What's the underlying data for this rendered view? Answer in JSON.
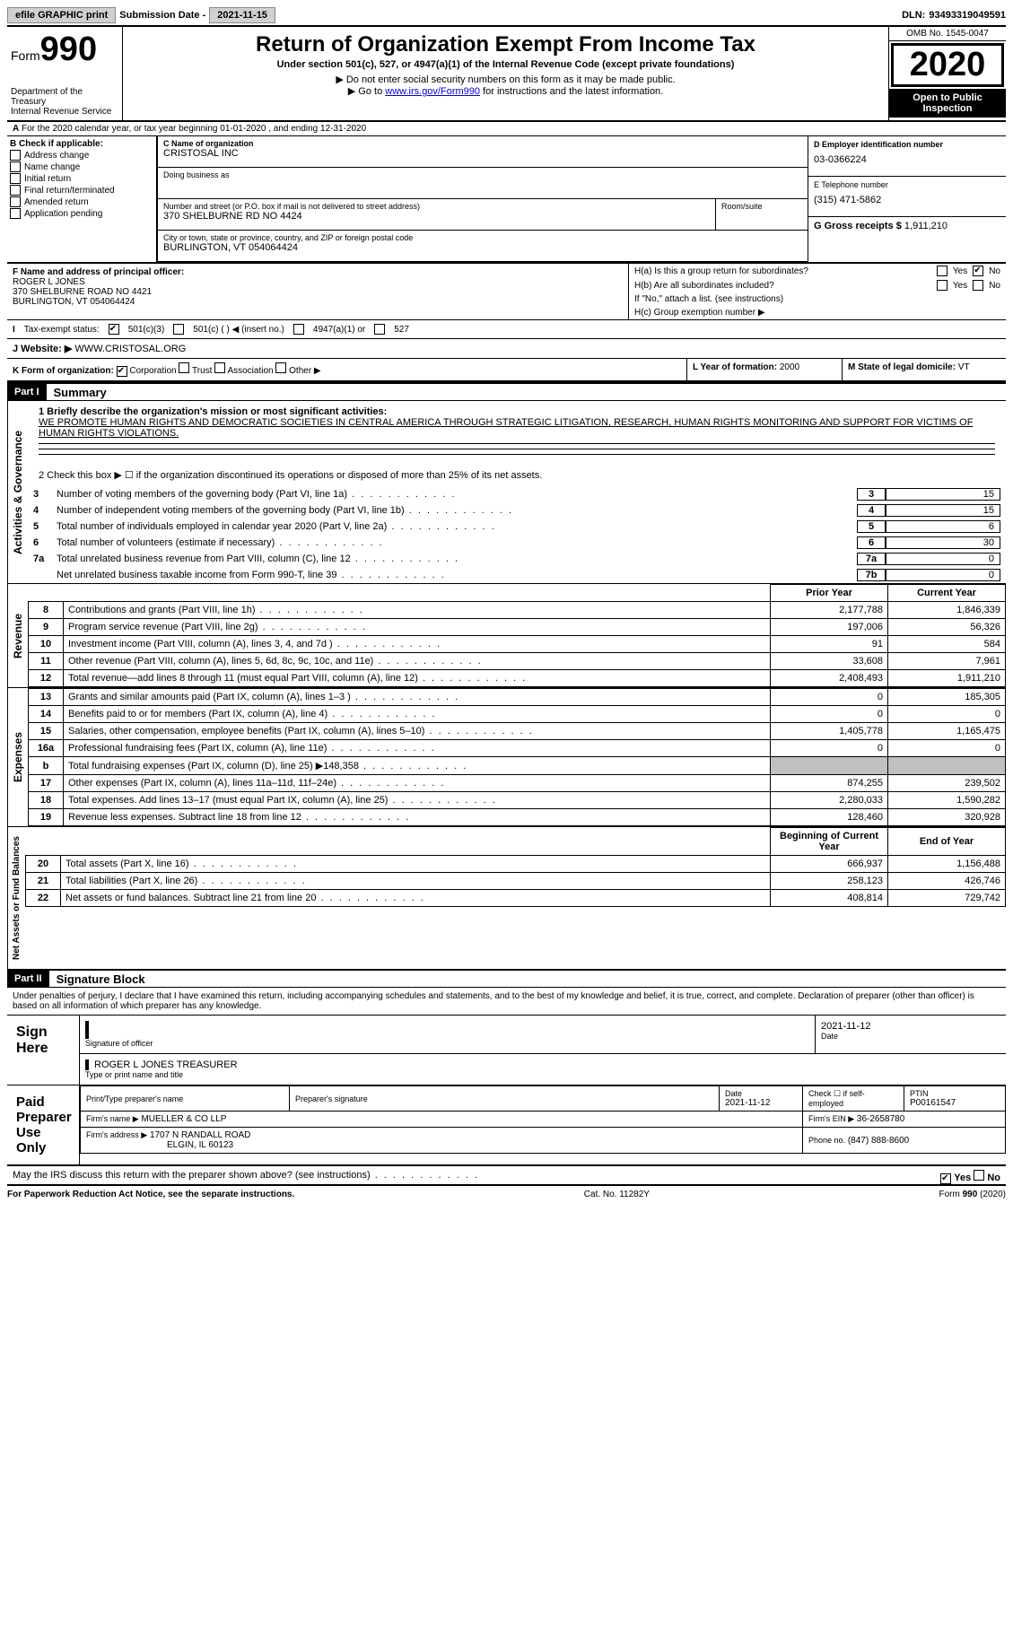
{
  "top": {
    "efile": "efile GRAPHIC print",
    "submission_label": "Submission Date - ",
    "submission_date": "2021-11-15",
    "dln_label": "DLN:",
    "dln": "93493319049591"
  },
  "header": {
    "form_label": "Form",
    "form_number": "990",
    "dept": "Department of the Treasury",
    "irs": "Internal Revenue Service",
    "title": "Return of Organization Exempt From Income Tax",
    "subtitle": "Under section 501(c), 527, or 4947(a)(1) of the Internal Revenue Code (except private foundations)",
    "note1": "▶ Do not enter social security numbers on this form as it may be made public.",
    "note2_a": "▶ Go to ",
    "note2_link": "www.irs.gov/Form990",
    "note2_b": " for instructions and the latest information.",
    "omb": "OMB No. 1545-0047",
    "year": "2020",
    "open": "Open to Public Inspection"
  },
  "lineA": "For the 2020 calendar year, or tax year beginning 01-01-2020   , and ending 12-31-2020",
  "sectionB": {
    "title": "B Check if applicable:",
    "items": [
      "Address change",
      "Name change",
      "Initial return",
      "Final return/terminated",
      "Amended return",
      "Application pending"
    ]
  },
  "sectionC": {
    "name_label": "C Name of organization",
    "name": "CRISTOSAL INC",
    "dba_label": "Doing business as",
    "dba": "",
    "addr_label": "Number and street (or P.O. box if mail is not delivered to street address)",
    "room_label": "Room/suite",
    "addr": "370 SHELBURNE RD NO 4424",
    "city_label": "City or town, state or province, country, and ZIP or foreign postal code",
    "city": "BURLINGTON, VT  054064424"
  },
  "sectionDE": {
    "d_label": "D Employer identification number",
    "ein": "03-0366224",
    "e_label": "E Telephone number",
    "phone": "(315) 471-5862",
    "g_label": "G Gross receipts $",
    "gross": "1,911,210"
  },
  "sectionF": {
    "label": "F Name and address of principal officer:",
    "name": "ROGER L JONES",
    "addr": "370 SHELBURNE ROAD NO 4421",
    "city": "BURLINGTON, VT  054064424"
  },
  "sectionH": {
    "ha": "H(a)  Is this a group return for subordinates?",
    "hb": "H(b)  Are all subordinates included?",
    "hb_note": "If \"No,\" attach a list. (see instructions)",
    "hc": "H(c)  Group exemption number ▶",
    "yes": "Yes",
    "no": "No"
  },
  "taxExempt": {
    "label": "Tax-exempt status:",
    "opt1": "501(c)(3)",
    "opt2": "501(c) (  ) ◀ (insert no.)",
    "opt3": "4947(a)(1) or",
    "opt4": "527"
  },
  "lineJ": {
    "label": "J  Website: ▶",
    "value": "WWW.CRISTOSAL.ORG"
  },
  "lineK": {
    "label": "K Form of organization:",
    "opts": [
      "Corporation",
      "Trust",
      "Association",
      "Other ▶"
    ]
  },
  "lineLM": {
    "l_label": "L Year of formation:",
    "l_val": "2000",
    "m_label": "M State of legal domicile:",
    "m_val": "VT"
  },
  "partI": {
    "header": "Part I",
    "title": "Summary",
    "q1_label": "1  Briefly describe the organization's mission or most significant activities:",
    "mission": "WE PROMOTE HUMAN RIGHTS AND DEMOCRATIC SOCIETIES IN CENTRAL AMERICA THROUGH STRATEGIC LITIGATION, RESEARCH, HUMAN RIGHTS MONITORING AND SUPPORT FOR VICTIMS OF HUMAN RIGHTS VIOLATIONS.",
    "q2": "2   Check this box ▶ ☐  if the organization discontinued its operations or disposed of more than 25% of its net assets.",
    "vert_ag": "Activities & Governance",
    "vert_rev": "Revenue",
    "vert_exp": "Expenses",
    "vert_na": "Net Assets or Fund Balances",
    "gov_rows": [
      {
        "n": "3",
        "t": "Number of voting members of the governing body (Part VI, line 1a)",
        "box": "3",
        "v": "15"
      },
      {
        "n": "4",
        "t": "Number of independent voting members of the governing body (Part VI, line 1b)",
        "box": "4",
        "v": "15"
      },
      {
        "n": "5",
        "t": "Total number of individuals employed in calendar year 2020 (Part V, line 2a)",
        "box": "5",
        "v": "6"
      },
      {
        "n": "6",
        "t": "Total number of volunteers (estimate if necessary)",
        "box": "6",
        "v": "30"
      },
      {
        "n": "7a",
        "t": "Total unrelated business revenue from Part VIII, column (C), line 12",
        "box": "7a",
        "v": "0"
      },
      {
        "n": "",
        "t": "Net unrelated business taxable income from Form 990-T, line 39",
        "box": "7b",
        "v": "0"
      },
      {
        "n": "b",
        "t": "",
        "box": "",
        "v": ""
      }
    ],
    "fin_header": {
      "py": "Prior Year",
      "cy": "Current Year"
    },
    "rev_rows": [
      {
        "n": "8",
        "t": "Contributions and grants (Part VIII, line 1h)",
        "py": "2,177,788",
        "cy": "1,846,339"
      },
      {
        "n": "9",
        "t": "Program service revenue (Part VIII, line 2g)",
        "py": "197,006",
        "cy": "56,326"
      },
      {
        "n": "10",
        "t": "Investment income (Part VIII, column (A), lines 3, 4, and 7d )",
        "py": "91",
        "cy": "584"
      },
      {
        "n": "11",
        "t": "Other revenue (Part VIII, column (A), lines 5, 6d, 8c, 9c, 10c, and 11e)",
        "py": "33,608",
        "cy": "7,961"
      },
      {
        "n": "12",
        "t": "Total revenue—add lines 8 through 11 (must equal Part VIII, column (A), line 12)",
        "py": "2,408,493",
        "cy": "1,911,210"
      }
    ],
    "exp_rows": [
      {
        "n": "13",
        "t": "Grants and similar amounts paid (Part IX, column (A), lines 1–3 )",
        "py": "0",
        "cy": "185,305"
      },
      {
        "n": "14",
        "t": "Benefits paid to or for members (Part IX, column (A), line 4)",
        "py": "0",
        "cy": "0"
      },
      {
        "n": "15",
        "t": "Salaries, other compensation, employee benefits (Part IX, column (A), lines 5–10)",
        "py": "1,405,778",
        "cy": "1,165,475"
      },
      {
        "n": "16a",
        "t": "Professional fundraising fees (Part IX, column (A), line 11e)",
        "py": "0",
        "cy": "0"
      },
      {
        "n": "b",
        "t": "Total fundraising expenses (Part IX, column (D), line 25) ▶148,358",
        "py": "",
        "cy": ""
      },
      {
        "n": "17",
        "t": "Other expenses (Part IX, column (A), lines 11a–11d, 11f–24e)",
        "py": "874,255",
        "cy": "239,502"
      },
      {
        "n": "18",
        "t": "Total expenses. Add lines 13–17 (must equal Part IX, column (A), line 25)",
        "py": "2,280,033",
        "cy": "1,590,282"
      },
      {
        "n": "19",
        "t": "Revenue less expenses. Subtract line 18 from line 12",
        "py": "128,460",
        "cy": "320,928"
      }
    ],
    "na_header": {
      "py": "Beginning of Current Year",
      "cy": "End of Year"
    },
    "na_rows": [
      {
        "n": "20",
        "t": "Total assets (Part X, line 16)",
        "py": "666,937",
        "cy": "1,156,488"
      },
      {
        "n": "21",
        "t": "Total liabilities (Part X, line 26)",
        "py": "258,123",
        "cy": "426,746"
      },
      {
        "n": "22",
        "t": "Net assets or fund balances. Subtract line 21 from line 20",
        "py": "408,814",
        "cy": "729,742"
      }
    ]
  },
  "partII": {
    "header": "Part II",
    "title": "Signature Block",
    "penalty": "Under penalties of perjury, I declare that I have examined this return, including accompanying schedules and statements, and to the best of my knowledge and belief, it is true, correct, and complete. Declaration of preparer (other than officer) is based on all information of which preparer has any knowledge."
  },
  "sign": {
    "label": "Sign Here",
    "sig_officer": "Signature of officer",
    "sig_date": "2021-11-12",
    "date_label": "Date",
    "name": "ROGER L JONES TREASURER",
    "type_label": "Type or print name and title"
  },
  "preparer": {
    "label": "Paid Preparer Use Only",
    "print_label": "Print/Type preparer's name",
    "sig_label": "Preparer's signature",
    "date_label": "Date",
    "date": "2021-11-12",
    "check_label": "Check ☐ if self-employed",
    "ptin_label": "PTIN",
    "ptin": "P00161547",
    "firm_name_label": "Firm's name    ▶",
    "firm_name": "MUELLER & CO LLP",
    "firm_ein_label": "Firm's EIN ▶",
    "firm_ein": "36-2658780",
    "firm_addr_label": "Firm's address ▶",
    "firm_addr1": "1707 N RANDALL ROAD",
    "firm_addr2": "ELGIN, IL  60123",
    "phone_label": "Phone no.",
    "phone": "(847) 888-8600"
  },
  "discuss": "May the IRS discuss this return with the preparer shown above? (see instructions)",
  "footer": {
    "left": "For Paperwork Reduction Act Notice, see the separate instructions.",
    "mid": "Cat. No. 11282Y",
    "right": "Form 990 (2020)"
  }
}
